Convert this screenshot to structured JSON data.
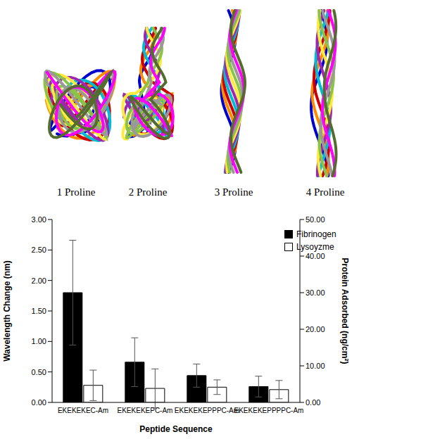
{
  "structures": [
    "1 Proline",
    "2 Proline",
    "3 Proline",
    "4 Proline"
  ],
  "chart_data": {
    "type": "bar",
    "categories": [
      "EKEKEKEC-Am",
      "EKEKEKEPC-Am",
      "EKEKEKEPPPC-Am",
      "EKEKEKEPPPPC-Am"
    ],
    "x_label": "Peptide Sequence",
    "y_label": "Wavelength Change (nm)",
    "y2_label": "Protein Adsorbed (ng/cm²)",
    "series": [
      {
        "name": "Fibrinogen",
        "color": "#000000",
        "values": [
          1.8,
          0.66,
          0.44,
          0.26
        ],
        "errors": [
          0.86,
          0.4,
          0.19,
          0.17
        ]
      },
      {
        "name": "Lysoyzme",
        "color": "#ffffff",
        "values": [
          0.28,
          0.23,
          0.25,
          0.21
        ],
        "errors": [
          0.25,
          0.32,
          0.12,
          0.15
        ]
      }
    ],
    "ylim": [
      0,
      3
    ],
    "yticks": [
      {
        "value": 0,
        "label": "0.00"
      },
      {
        "value": 0.5,
        "label": "0.50"
      },
      {
        "value": 1,
        "label": "1.00"
      },
      {
        "value": 1.5,
        "label": "1.50"
      },
      {
        "value": 2,
        "label": "2.00"
      },
      {
        "value": 2.5,
        "label": "2.50"
      },
      {
        "value": 3,
        "label": "3.00"
      }
    ],
    "y2lim": [
      0,
      50
    ],
    "y2ticks": [
      {
        "value": 0,
        "label": "0.00"
      },
      {
        "value": 10,
        "label": "10.00"
      },
      {
        "value": 20,
        "label": "20.00"
      },
      {
        "value": 30,
        "label": "30.00"
      },
      {
        "value": 40,
        "label": "40.00"
      },
      {
        "value": 50,
        "label": "50.00"
      }
    ],
    "legend": "top-right"
  }
}
